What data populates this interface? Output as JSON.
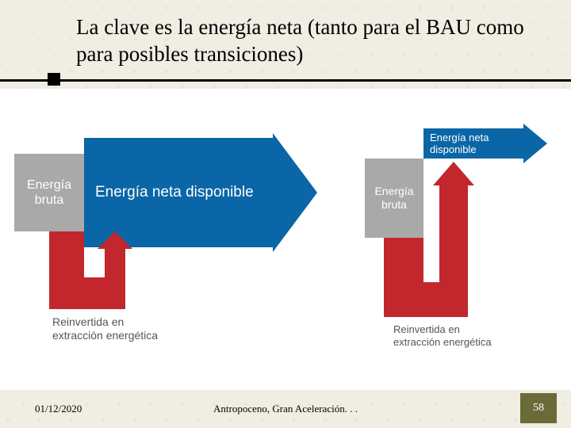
{
  "title": "La clave es la energía neta (tanto para el BAU como para posibles transiciones)",
  "title_fontsize": 27,
  "background_color": "#f0ede3",
  "divider_color": "#000000",
  "diagram_area_bg": "#ffffff",
  "diagramA": {
    "gross": {
      "label": "Energía bruta",
      "color": "#a9a9a9",
      "fontsize": 16
    },
    "net": {
      "label": "Energía neta disponible",
      "color": "#0a66a6",
      "fontsize": 19
    },
    "reinvest": {
      "label": "Reinvertida en\nextracción energética",
      "color": "#c1272d",
      "fontsize": 14
    }
  },
  "diagramB": {
    "gross": {
      "label": "Energía bruta",
      "color": "#a9a9a9",
      "fontsize": 14
    },
    "net": {
      "label": "Energía neta disponible",
      "color": "#0a66a6",
      "fontsize": 13
    },
    "reinvest": {
      "label": "Reinvertida en\nextracción energética",
      "color": "#c1272d",
      "fontsize": 13
    }
  },
  "footer": {
    "date": "01/12/2020",
    "center": "Antropoceno, Gran Aceleración. . .",
    "page": "58",
    "page_bg": "#6b6b3a",
    "fontsize": 13
  }
}
